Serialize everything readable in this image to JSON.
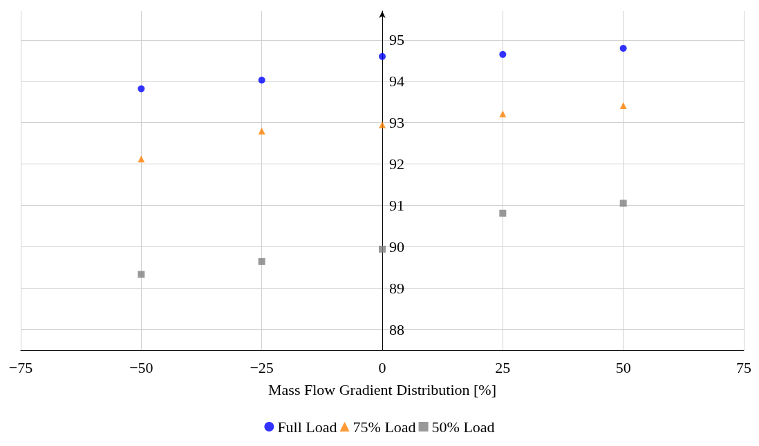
{
  "chart_data": {
    "type": "scatter",
    "xlabel": "Mass Flow Gradient Distribution [%]",
    "x": [
      -50,
      -25,
      0,
      25,
      50
    ],
    "series": [
      {
        "name": "Full Load",
        "color": "#0000ff",
        "marker": "circle",
        "values": [
          93.82,
          94.03,
          94.6,
          94.65,
          94.8
        ]
      },
      {
        "name": "75% Load",
        "color": "#ff8000",
        "marker": "triangle",
        "values": [
          92.12,
          92.8,
          92.95,
          93.21,
          93.41
        ]
      },
      {
        "name": "50% Load",
        "color": "#808080",
        "marker": "square",
        "values": [
          89.33,
          89.64,
          89.94,
          90.81,
          91.05
        ]
      }
    ],
    "xlim": [
      -75,
      75
    ],
    "xticks": [
      -75,
      -50,
      -25,
      0,
      25,
      50,
      75
    ],
    "ylim": [
      87.5,
      95.7
    ],
    "yticks": [
      88,
      89,
      90,
      91,
      92,
      93,
      94,
      95
    ],
    "grid": true,
    "legend": "bottom"
  }
}
